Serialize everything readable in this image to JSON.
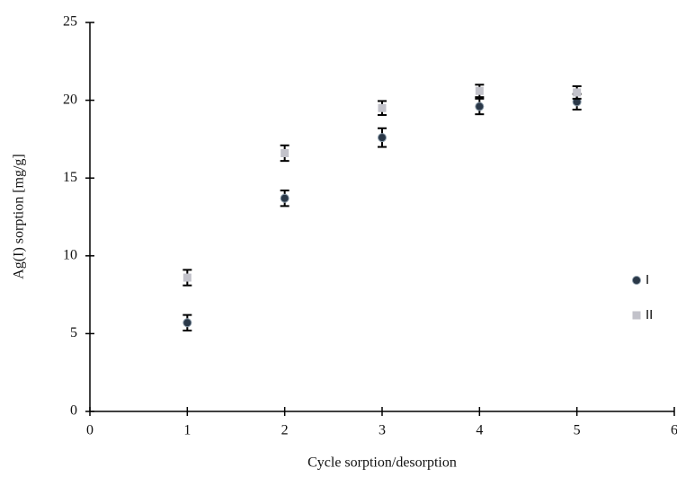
{
  "chart_data": {
    "type": "scatter",
    "x_label": "Cycle sorption/desorption",
    "y_label": "Ag(I) sorption [mg/g]",
    "xlim": [
      0,
      6
    ],
    "xticks": [
      0,
      1,
      2,
      3,
      4,
      5,
      6
    ],
    "ylim": [
      0,
      25
    ],
    "yticks": [
      0,
      5,
      10,
      15,
      20,
      25
    ],
    "grid": false,
    "legend": "right",
    "series": [
      {
        "name": "I",
        "color": "#2a3848",
        "marker": "circle",
        "x": [
          1,
          2,
          3,
          4,
          5
        ],
        "values": [
          5.7,
          13.7,
          17.6,
          19.6,
          19.9
        ],
        "errors": [
          0.5,
          0.5,
          0.6,
          0.5,
          0.5
        ]
      },
      {
        "name": "II",
        "color": "#c2c2ca",
        "marker": "square",
        "x": [
          1,
          2,
          3,
          4,
          5
        ],
        "values": [
          8.6,
          16.6,
          19.5,
          20.6,
          20.5
        ],
        "errors": [
          0.5,
          0.5,
          0.45,
          0.4,
          0.4
        ]
      }
    ]
  }
}
